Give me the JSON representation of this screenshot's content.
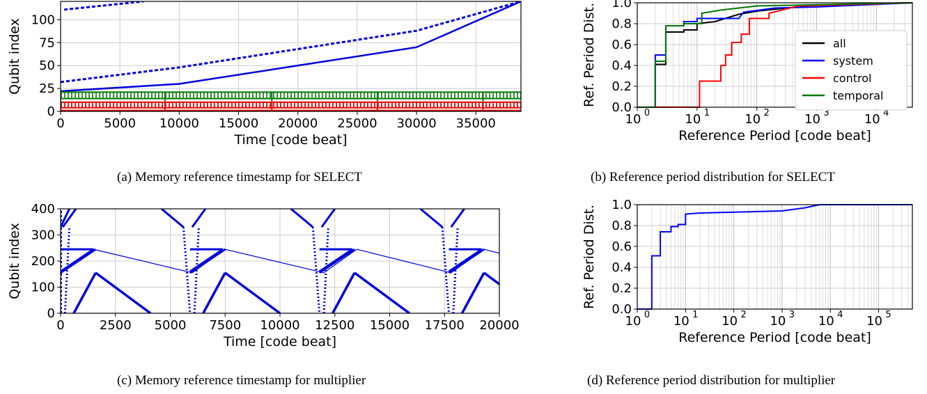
{
  "panels": [
    {
      "id": "a",
      "caption": "(a) Memory reference timestamp for SELECT",
      "chart_data": {
        "type": "scatter",
        "xlabel": "Time [code beat]",
        "ylabel": "Qubit index",
        "xlim": [
          0,
          38800
        ],
        "ylim": [
          0,
          120
        ],
        "xticks": [
          0,
          5000,
          10000,
          15000,
          20000,
          25000,
          30000,
          35000
        ],
        "yticks": [
          0,
          25,
          50,
          75,
          100
        ],
        "grid": true,
        "series": [
          {
            "color": "#0000dd",
            "kind": "line",
            "points": [
              [
                0,
                22
              ],
              [
                10000,
                30
              ],
              [
                20000,
                50
              ],
              [
                30000,
                70
              ],
              [
                38800,
                120
              ]
            ]
          },
          {
            "color": "#0000dd",
            "kind": "dashed",
            "points": [
              [
                0,
                32
              ],
              [
                10000,
                48
              ],
              [
                20000,
                68
              ],
              [
                30000,
                88
              ],
              [
                38800,
                120
              ]
            ]
          },
          {
            "color": "#0000dd",
            "kind": "dashed",
            "points": [
              [
                300,
                111
              ],
              [
                7000,
                120
              ]
            ]
          },
          {
            "color": "#007700",
            "kind": "band",
            "y": [
              14,
              21
            ],
            "spikes": [
              0,
              8800,
              17800,
              26700,
              35600
            ]
          },
          {
            "color": "#dd0000",
            "kind": "band",
            "y": [
              4,
              10
            ],
            "spikes": [
              0,
              8800,
              17800,
              26700,
              35600
            ]
          },
          {
            "color": "#dd0000",
            "kind": "flat",
            "y": [
              1
            ]
          }
        ]
      }
    },
    {
      "id": "b",
      "caption": "(b) Reference period distribution for SELECT",
      "chart_data": {
        "type": "line",
        "xscale": "log",
        "xlabel": "Reference Period [code beat]",
        "ylabel": "Ref. Period Dist.",
        "xlim": [
          1,
          40000
        ],
        "ylim": [
          0,
          1.0
        ],
        "yticks": [
          0.0,
          0.2,
          0.4,
          0.6,
          0.8,
          1.0
        ],
        "xtick_labels": [
          "10",
          "10",
          "10",
          "10",
          "10"
        ],
        "xtick_exponents": [
          "0",
          "1",
          "2",
          "3",
          "4"
        ],
        "grid": true,
        "legend": {
          "position": "right",
          "entries": [
            "all",
            "system",
            "control",
            "temporal"
          ]
        },
        "series": [
          {
            "name": "all",
            "color": "#000000",
            "points": [
              [
                1,
                0
              ],
              [
                2,
                0
              ],
              [
                2,
                0.41
              ],
              [
                3,
                0.41
              ],
              [
                3,
                0.72
              ],
              [
                6,
                0.72
              ],
              [
                6,
                0.74
              ],
              [
                10,
                0.74
              ],
              [
                10,
                0.8
              ],
              [
                20,
                0.82
              ],
              [
                50,
                0.89
              ],
              [
                100,
                0.92
              ],
              [
                1000,
                0.98
              ],
              [
                40000,
                1.0
              ]
            ]
          },
          {
            "name": "system",
            "color": "#0000ff",
            "points": [
              [
                1,
                0
              ],
              [
                2,
                0
              ],
              [
                2,
                0.5
              ],
              [
                3,
                0.5
              ],
              [
                3,
                0.78
              ],
              [
                6,
                0.78
              ],
              [
                6,
                0.82
              ],
              [
                10,
                0.82
              ],
              [
                10,
                0.85
              ],
              [
                50,
                0.85
              ],
              [
                60,
                0.91
              ],
              [
                200,
                0.95
              ],
              [
                1000,
                0.96
              ],
              [
                40000,
                1.0
              ]
            ]
          },
          {
            "name": "control",
            "color": "#ff0000",
            "points": [
              [
                1,
                0
              ],
              [
                11,
                0
              ],
              [
                11,
                0.25
              ],
              [
                25,
                0.25
              ],
              [
                25,
                0.4
              ],
              [
                30,
                0.4
              ],
              [
                30,
                0.5
              ],
              [
                38,
                0.5
              ],
              [
                38,
                0.62
              ],
              [
                55,
                0.62
              ],
              [
                55,
                0.7
              ],
              [
                75,
                0.7
              ],
              [
                75,
                0.85
              ],
              [
                160,
                0.85
              ],
              [
                160,
                0.9
              ],
              [
                500,
                0.97
              ],
              [
                40000,
                1.0
              ]
            ]
          },
          {
            "name": "temporal",
            "color": "#007700",
            "points": [
              [
                1,
                0
              ],
              [
                2,
                0
              ],
              [
                2,
                0.44
              ],
              [
                3,
                0.44
              ],
              [
                3,
                0.78
              ],
              [
                6,
                0.78
              ],
              [
                6,
                0.8
              ],
              [
                12,
                0.8
              ],
              [
                12,
                0.9
              ],
              [
                25,
                0.93
              ],
              [
                100,
                0.97
              ],
              [
                40000,
                1.0
              ]
            ]
          }
        ]
      }
    },
    {
      "id": "c",
      "caption": "(c) Memory reference timestamp for multiplier",
      "chart_data": {
        "type": "scatter",
        "xlabel": "Time [code beat]",
        "ylabel": "Qubit index",
        "xlim": [
          0,
          20000
        ],
        "ylim": [
          0,
          400
        ],
        "xticks": [
          0,
          2500,
          5000,
          7500,
          10000,
          12500,
          15000,
          17500,
          20000
        ],
        "yticks": [
          0,
          100,
          200,
          300,
          400
        ],
        "grid": true,
        "series": [
          {
            "color": "#0000dd",
            "kind": "line",
            "points": [
              [
                1500,
                245
              ],
              [
                6000,
                155
              ],
              [
                7500,
                245
              ],
              [
                12000,
                155
              ],
              [
                13500,
                245
              ],
              [
                17800,
                155
              ],
              [
                19300,
                245
              ],
              [
                20000,
                230
              ]
            ]
          }
        ]
      }
    },
    {
      "id": "d",
      "caption": "(d) Reference period distribution for multiplier",
      "chart_data": {
        "type": "line",
        "xscale": "log",
        "xlabel": "Reference Period [code beat]",
        "ylabel": "Ref. Period Dist.",
        "xlim": [
          1,
          500000
        ],
        "ylim": [
          0,
          1.0
        ],
        "yticks": [
          0.0,
          0.2,
          0.4,
          0.6,
          0.8,
          1.0
        ],
        "xtick_labels": [
          "10",
          "10",
          "10",
          "10",
          "10",
          "10"
        ],
        "xtick_exponents": [
          "0",
          "1",
          "2",
          "3",
          "4",
          "5"
        ],
        "grid": true,
        "series": [
          {
            "color": "#0000ff",
            "points": [
              [
                1,
                0
              ],
              [
                2,
                0
              ],
              [
                2,
                0.51
              ],
              [
                3,
                0.51
              ],
              [
                3,
                0.74
              ],
              [
                5,
                0.74
              ],
              [
                5,
                0.79
              ],
              [
                7,
                0.79
              ],
              [
                7,
                0.81
              ],
              [
                10,
                0.81
              ],
              [
                10,
                0.91
              ],
              [
                20,
                0.92
              ],
              [
                1000,
                0.94
              ],
              [
                3000,
                0.97
              ],
              [
                6000,
                1.0
              ],
              [
                500000,
                1.0
              ]
            ]
          }
        ]
      }
    }
  ]
}
